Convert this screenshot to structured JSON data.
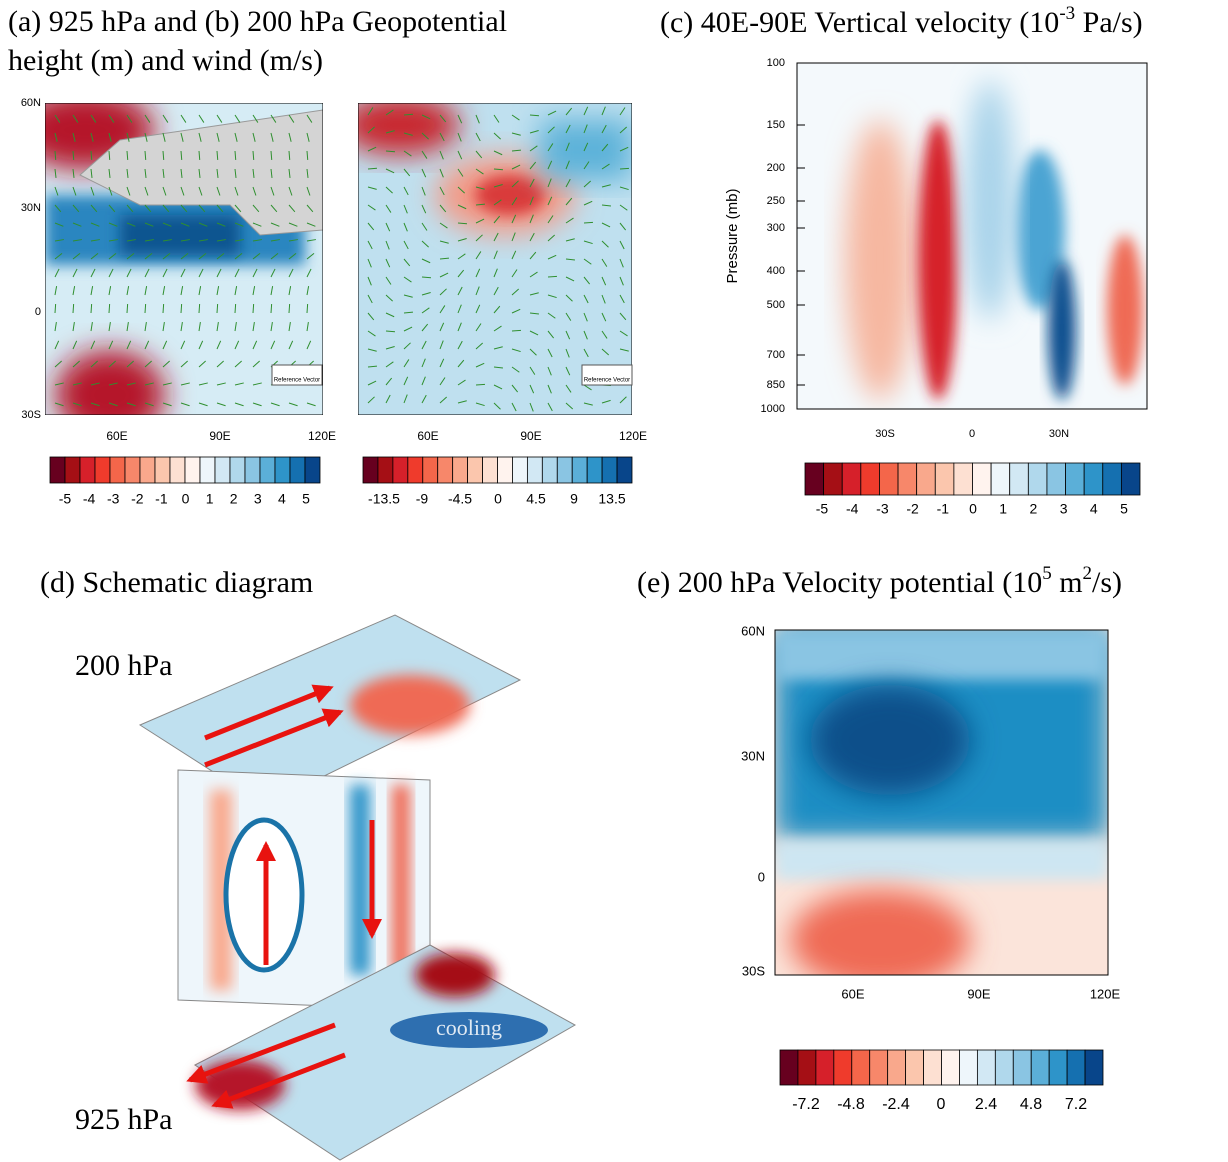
{
  "panels": {
    "ab": {
      "title_line1": "(a) 925 hPa and (b) 200 hPa Geopotential",
      "title_line2": "height (m) and wind (m/s)",
      "lat_labels": [
        "60N",
        "30N",
        "0",
        "30S"
      ],
      "lon_labels": [
        "60E",
        "90E",
        "120E"
      ],
      "reference": "Reference Vector",
      "colorbar_a": [
        "-5",
        "-4",
        "-3",
        "-2",
        "-1",
        "0",
        "1",
        "2",
        "3",
        "4",
        "5"
      ],
      "colorbar_b": [
        "-13.5",
        "-9",
        "-4.5",
        "0",
        "4.5",
        "9",
        "13.5"
      ]
    },
    "c": {
      "title": "(c) 40E-90E Vertical velocity (10",
      "title_sup": "-3",
      "title_end": " Pa/s)",
      "ylabel": "Pressure (mb)",
      "yticks": [
        "100",
        "150",
        "200",
        "250",
        "300",
        "400",
        "500",
        "700",
        "850",
        "1000"
      ],
      "xticks": [
        "30S",
        "0",
        "30N"
      ],
      "colorbar": [
        "-5",
        "-4",
        "-3",
        "-2",
        "-1",
        "0",
        "1",
        "2",
        "3",
        "4",
        "5"
      ]
    },
    "d": {
      "title": "(d) Schematic diagram",
      "upper": "200 hPa",
      "lower": "925 hPa",
      "cooling": "cooling"
    },
    "e": {
      "title": "(e) 200 hPa Velocity potential (10",
      "title_sup1": "5",
      "title_mid": " m",
      "title_sup2": "2",
      "title_end": "/s)",
      "lat_labels": [
        "60N",
        "30N",
        "0",
        "30S"
      ],
      "lon_labels": [
        "60E",
        "90E",
        "120E"
      ],
      "colorbar": [
        "-7.2",
        "-4.8",
        "-2.4",
        "0",
        "2.4",
        "4.8",
        "7.2"
      ]
    }
  }
}
